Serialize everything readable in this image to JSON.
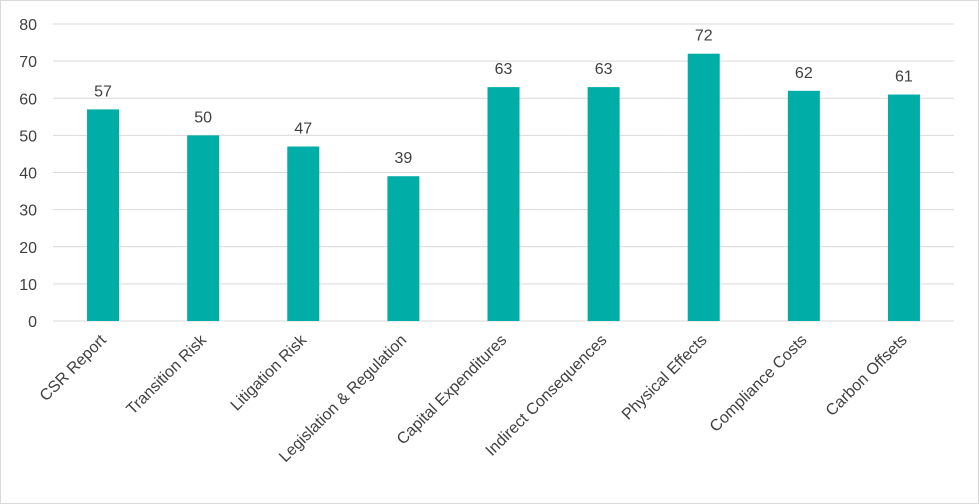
{
  "chart_data": {
    "type": "bar",
    "title": "",
    "xlabel": "",
    "ylabel": "",
    "categories": [
      "CSR Report",
      "Transition Risk",
      "Litigation Risk",
      "Legislation & Regulation",
      "Capital Expenditures",
      "Indirect Consequences",
      "Physical Effects",
      "Compliance Costs",
      "Carbon Offsets"
    ],
    "values": [
      57,
      50,
      47,
      39,
      63,
      63,
      72,
      62,
      61
    ],
    "ylim": [
      0,
      80
    ],
    "yticks": [
      0,
      10,
      20,
      30,
      40,
      50,
      60,
      70,
      80
    ],
    "grid": true,
    "legend": "none",
    "bar_color": "#00ada7",
    "grid_color": "#d9d9d9",
    "text_color": "#404040"
  }
}
